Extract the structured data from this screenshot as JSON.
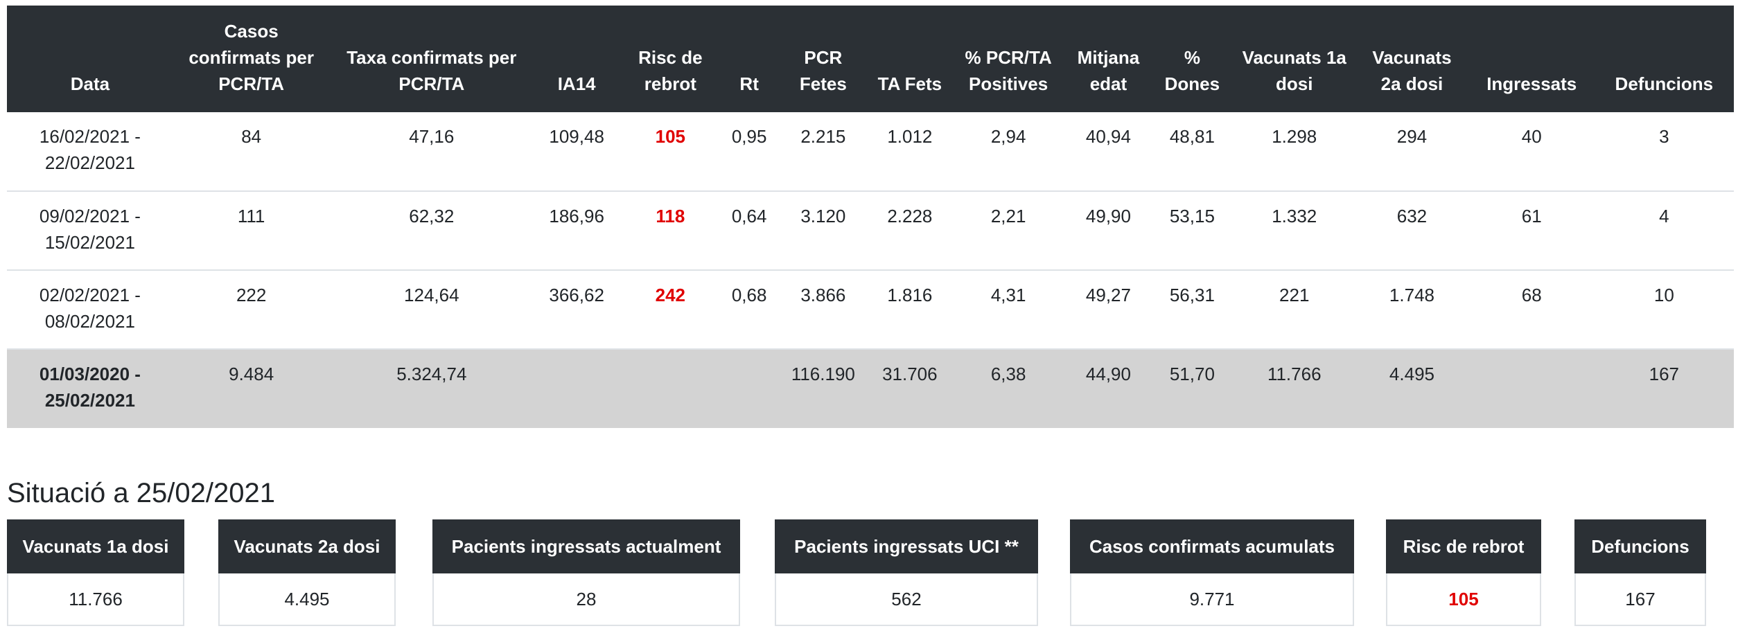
{
  "table": {
    "headers": [
      "Data",
      "Casos confirmats per PCR/TA",
      "Taxa confirmats per PCR/TA",
      "IA14",
      "Risc de rebrot",
      "Rt",
      "PCR Fetes",
      "TA Fets",
      "% PCR/TA Positives",
      "Mitjana edat",
      "% Dones",
      "Vacunats 1a dosi",
      "Vacunats 2a dosi",
      "Ingressats",
      "Defuncions"
    ],
    "rows": [
      [
        "16/02/2021 - 22/02/2021",
        "84",
        "47,16",
        "109,48",
        "105",
        "0,95",
        "2.215",
        "1.012",
        "2,94",
        "40,94",
        "48,81",
        "1.298",
        "294",
        "40",
        "3"
      ],
      [
        "09/02/2021 - 15/02/2021",
        "111",
        "62,32",
        "186,96",
        "118",
        "0,64",
        "3.120",
        "2.228",
        "2,21",
        "49,90",
        "53,15",
        "1.332",
        "632",
        "61",
        "4"
      ],
      [
        "02/02/2021 - 08/02/2021",
        "222",
        "124,64",
        "366,62",
        "242",
        "0,68",
        "3.866",
        "1.816",
        "4,31",
        "49,27",
        "56,31",
        "221",
        "1.748",
        "68",
        "10"
      ],
      [
        "01/03/2020 - 25/02/2021",
        "9.484",
        "5.324,74",
        "",
        "",
        "",
        "116.190",
        "31.706",
        "6,38",
        "44,90",
        "51,70",
        "11.766",
        "4.495",
        "",
        "167"
      ]
    ]
  },
  "situation": {
    "title": "Situació a 25/02/2021",
    "cards": [
      {
        "label": "Vacunats 1a dosi",
        "value": "11.766"
      },
      {
        "label": "Vacunats 2a dosi",
        "value": "4.495"
      },
      {
        "label": "Pacients ingressats actualment",
        "value": "28"
      },
      {
        "label": "Pacients ingressats UCI **",
        "value": "562"
      },
      {
        "label": "Casos confirmats acumulats",
        "value": "9.771"
      },
      {
        "label": "Risc de rebrot",
        "value": "105"
      },
      {
        "label": "Defuncions",
        "value": "167"
      }
    ]
  },
  "colors": {
    "header_bg": "#2b3035",
    "rebrot_red": "#e00000",
    "total_row_bg": "#d3d3d3"
  }
}
